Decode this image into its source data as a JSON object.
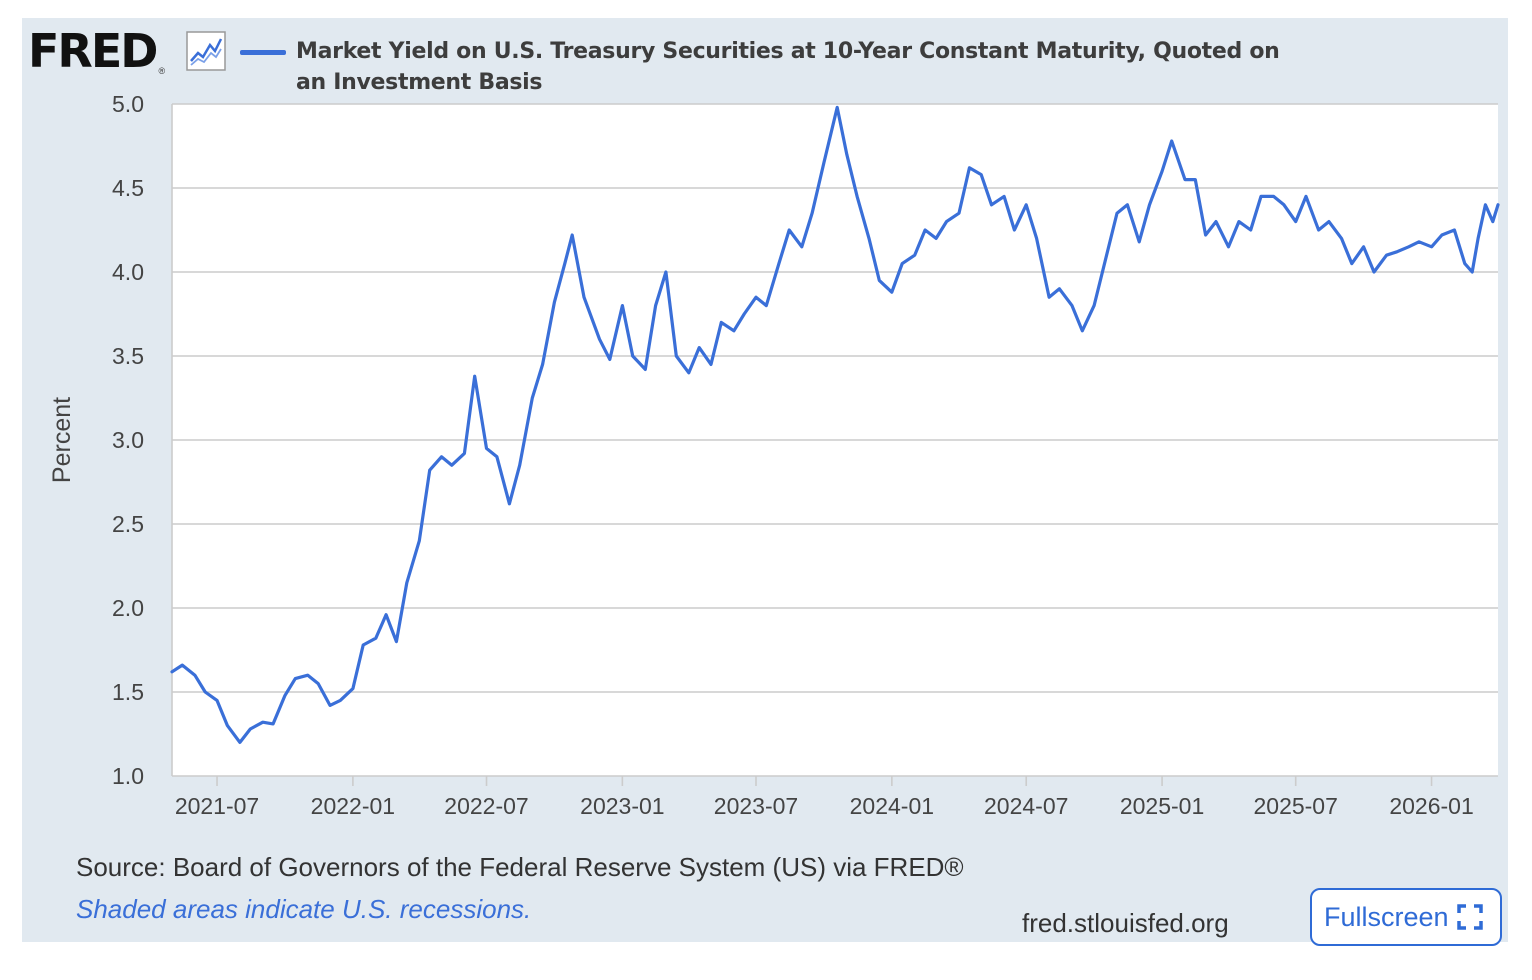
{
  "header": {
    "logo_text": "FRED",
    "logo_reg": "®",
    "legend_label": "Market Yield on U.S. Treasury Securities at 10-Year Constant Maturity, Quoted on an Investment Basis"
  },
  "footer": {
    "source": "Source: Board of Governors of the Federal Reserve System (US) via FRED®",
    "recession_note": "Shaded areas indicate U.S. recessions.",
    "site": "fred.stlouisfed.org",
    "fullscreen_label": "Fullscreen"
  },
  "colors": {
    "series": "#3a6fd8",
    "background": "#e1e9f0",
    "plot_background": "#ffffff",
    "grid": "#cccccc",
    "fullscreen_button": "#2f6bd6"
  },
  "icons": [
    "chart-line-icon",
    "fullscreen-icon"
  ],
  "chart_data": {
    "type": "line",
    "ylabel": "Percent",
    "xlabel": "",
    "ylim": [
      1.0,
      5.0
    ],
    "yticks": [
      "1.0",
      "1.5",
      "2.0",
      "2.5",
      "3.0",
      "3.5",
      "4.0",
      "4.5",
      "5.0"
    ],
    "xticks": [
      "2021-07",
      "2022-01",
      "2022-07",
      "2023-01",
      "2023-07",
      "2024-01",
      "2024-07",
      "2025-01",
      "2025-07",
      "2026-01"
    ],
    "xlim": [
      "2021-05-01",
      "2026-04-01"
    ],
    "grid": true,
    "legend_position": "top",
    "series": [
      {
        "name": "Market Yield on U.S. Treasury Securities at 10-Year Constant Maturity, Quoted on an Investment Basis",
        "points": [
          [
            "2021-05-01",
            1.62
          ],
          [
            "2021-05-15",
            1.66
          ],
          [
            "2021-06-01",
            1.6
          ],
          [
            "2021-06-15",
            1.5
          ],
          [
            "2021-07-01",
            1.45
          ],
          [
            "2021-07-15",
            1.3
          ],
          [
            "2021-08-01",
            1.2
          ],
          [
            "2021-08-15",
            1.28
          ],
          [
            "2021-09-01",
            1.32
          ],
          [
            "2021-09-15",
            1.31
          ],
          [
            "2021-10-01",
            1.48
          ],
          [
            "2021-10-15",
            1.58
          ],
          [
            "2021-11-01",
            1.6
          ],
          [
            "2021-11-15",
            1.55
          ],
          [
            "2021-12-01",
            1.42
          ],
          [
            "2021-12-15",
            1.45
          ],
          [
            "2022-01-01",
            1.52
          ],
          [
            "2022-01-15",
            1.78
          ],
          [
            "2022-02-01",
            1.82
          ],
          [
            "2022-02-15",
            1.96
          ],
          [
            "2022-03-01",
            1.8
          ],
          [
            "2022-03-15",
            2.15
          ],
          [
            "2022-04-01",
            2.4
          ],
          [
            "2022-04-15",
            2.82
          ],
          [
            "2022-05-01",
            2.9
          ],
          [
            "2022-05-15",
            2.85
          ],
          [
            "2022-06-01",
            2.92
          ],
          [
            "2022-06-15",
            3.38
          ],
          [
            "2022-07-01",
            2.95
          ],
          [
            "2022-07-15",
            2.9
          ],
          [
            "2022-08-01",
            2.62
          ],
          [
            "2022-08-15",
            2.85
          ],
          [
            "2022-09-01",
            3.25
          ],
          [
            "2022-09-15",
            3.45
          ],
          [
            "2022-10-01",
            3.82
          ],
          [
            "2022-10-15",
            4.05
          ],
          [
            "2022-10-25",
            4.22
          ],
          [
            "2022-11-10",
            3.85
          ],
          [
            "2022-12-01",
            3.6
          ],
          [
            "2022-12-15",
            3.48
          ],
          [
            "2023-01-01",
            3.8
          ],
          [
            "2023-01-15",
            3.5
          ],
          [
            "2023-02-01",
            3.42
          ],
          [
            "2023-02-15",
            3.8
          ],
          [
            "2023-03-01",
            4.0
          ],
          [
            "2023-03-15",
            3.5
          ],
          [
            "2023-04-01",
            3.4
          ],
          [
            "2023-04-15",
            3.55
          ],
          [
            "2023-05-01",
            3.45
          ],
          [
            "2023-05-15",
            3.7
          ],
          [
            "2023-06-01",
            3.65
          ],
          [
            "2023-06-15",
            3.75
          ],
          [
            "2023-07-01",
            3.85
          ],
          [
            "2023-07-15",
            3.8
          ],
          [
            "2023-08-01",
            4.05
          ],
          [
            "2023-08-15",
            4.25
          ],
          [
            "2023-09-01",
            4.15
          ],
          [
            "2023-09-15",
            4.35
          ],
          [
            "2023-10-01",
            4.65
          ],
          [
            "2023-10-19",
            4.98
          ],
          [
            "2023-11-01",
            4.7
          ],
          [
            "2023-11-15",
            4.45
          ],
          [
            "2023-12-01",
            4.2
          ],
          [
            "2023-12-15",
            3.95
          ],
          [
            "2024-01-01",
            3.88
          ],
          [
            "2024-01-15",
            4.05
          ],
          [
            "2024-02-01",
            4.1
          ],
          [
            "2024-02-15",
            4.25
          ],
          [
            "2024-03-01",
            4.2
          ],
          [
            "2024-03-15",
            4.3
          ],
          [
            "2024-04-01",
            4.35
          ],
          [
            "2024-04-15",
            4.62
          ],
          [
            "2024-05-01",
            4.58
          ],
          [
            "2024-05-15",
            4.4
          ],
          [
            "2024-06-01",
            4.45
          ],
          [
            "2024-06-15",
            4.25
          ],
          [
            "2024-07-01",
            4.4
          ],
          [
            "2024-07-15",
            4.2
          ],
          [
            "2024-08-01",
            3.85
          ],
          [
            "2024-08-15",
            3.9
          ],
          [
            "2024-09-01",
            3.8
          ],
          [
            "2024-09-15",
            3.65
          ],
          [
            "2024-10-01",
            3.8
          ],
          [
            "2024-10-15",
            4.05
          ],
          [
            "2024-11-01",
            4.35
          ],
          [
            "2024-11-15",
            4.4
          ],
          [
            "2024-12-01",
            4.18
          ],
          [
            "2024-12-15",
            4.4
          ],
          [
            "2025-01-01",
            4.6
          ],
          [
            "2025-01-14",
            4.78
          ],
          [
            "2025-02-01",
            4.55
          ],
          [
            "2025-02-15",
            4.55
          ],
          [
            "2025-03-01",
            4.22
          ],
          [
            "2025-03-15",
            4.3
          ],
          [
            "2025-04-01",
            4.15
          ],
          [
            "2025-04-15",
            4.3
          ],
          [
            "2025-05-01",
            4.25
          ],
          [
            "2025-05-15",
            4.45
          ],
          [
            "2025-06-01",
            4.45
          ],
          [
            "2025-06-15",
            4.4
          ],
          [
            "2025-07-01",
            4.3
          ],
          [
            "2025-07-15",
            4.45
          ],
          [
            "2025-08-01",
            4.25
          ],
          [
            "2025-08-15",
            4.3
          ],
          [
            "2025-09-01",
            4.2
          ],
          [
            "2025-09-15",
            4.05
          ],
          [
            "2025-10-01",
            4.15
          ],
          [
            "2025-10-15",
            4.0
          ],
          [
            "2025-11-01",
            4.1
          ],
          [
            "2025-11-15",
            4.12
          ],
          [
            "2025-12-01",
            4.15
          ],
          [
            "2025-12-15",
            4.18
          ],
          [
            "2026-01-01",
            4.15
          ],
          [
            "2026-01-15",
            4.22
          ],
          [
            "2026-02-01",
            4.25
          ],
          [
            "2026-02-15",
            4.05
          ],
          [
            "2026-02-25",
            4.0
          ],
          [
            "2026-03-05",
            4.2
          ],
          [
            "2026-03-15",
            4.4
          ],
          [
            "2026-03-25",
            4.3
          ],
          [
            "2026-04-01",
            4.4
          ]
        ]
      }
    ]
  }
}
